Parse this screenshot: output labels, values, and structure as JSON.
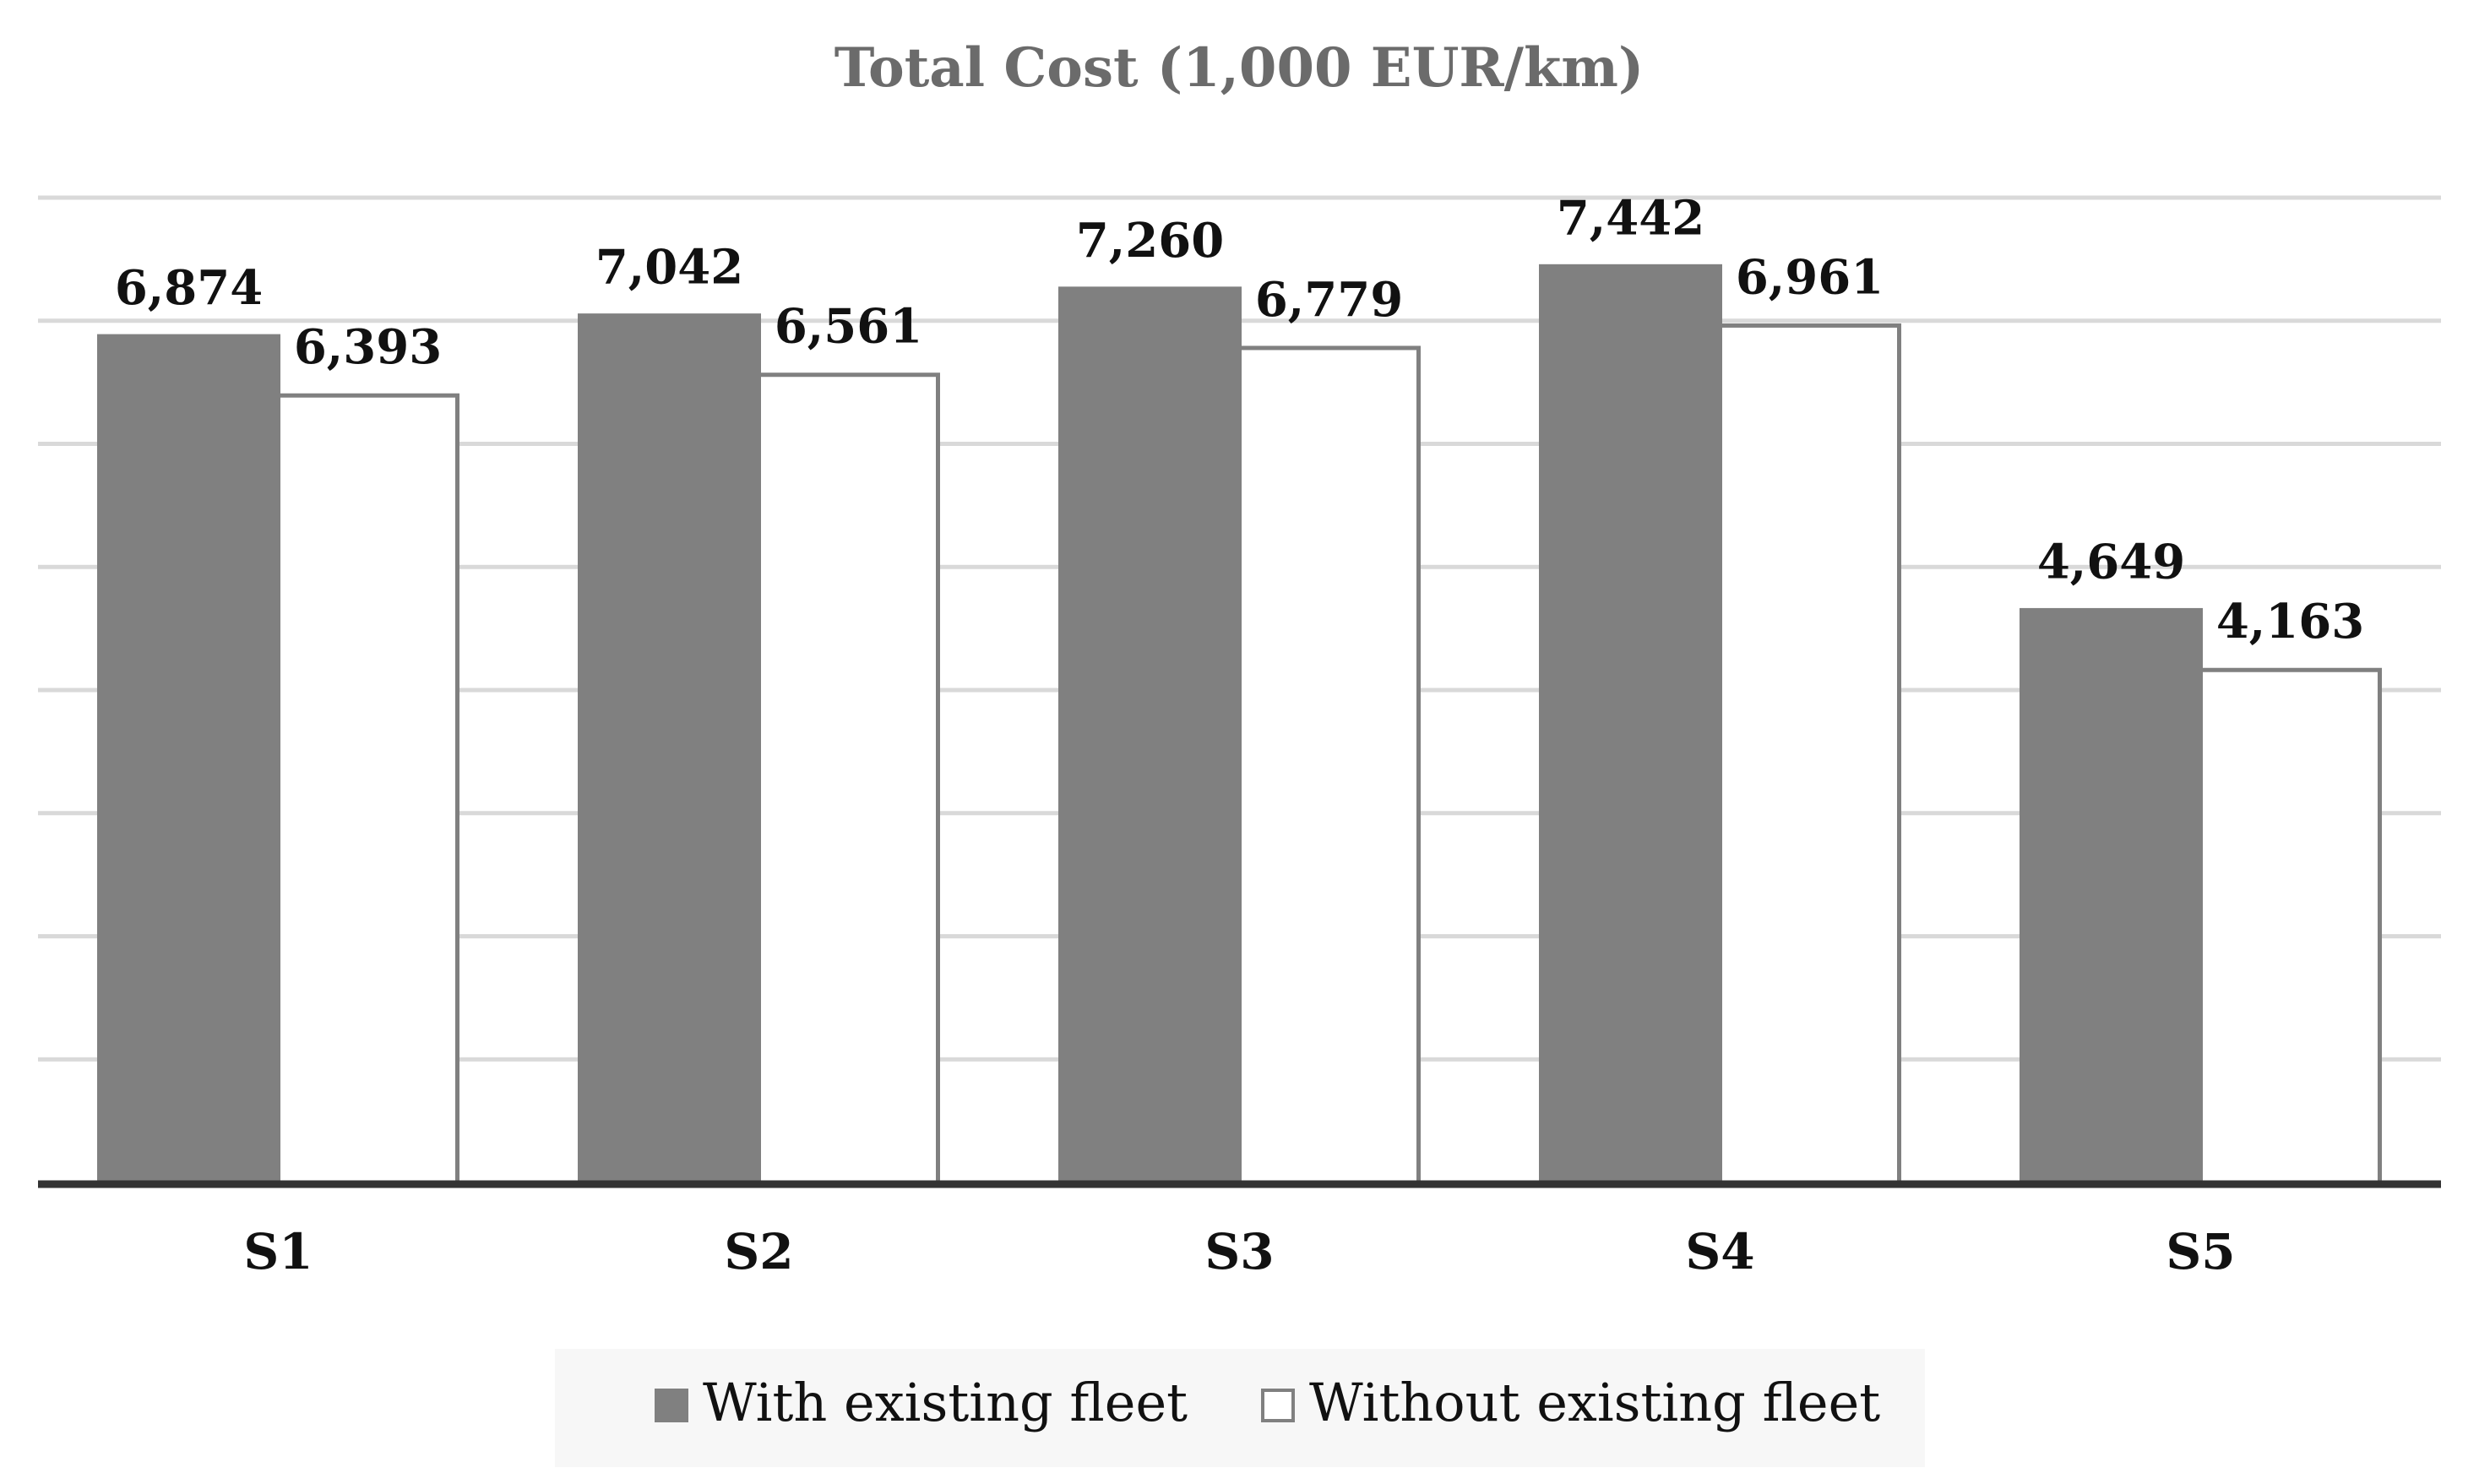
{
  "chart_data": {
    "type": "bar",
    "title": "Total Cost (1,000 EUR/km)",
    "xlabel": "",
    "ylabel": "",
    "categories": [
      "S1",
      "S2",
      "S3",
      "S4",
      "S5"
    ],
    "series": [
      {
        "name": "With existing fleet",
        "values": [
          6874,
          7042,
          7260,
          7442,
          4649
        ],
        "labels": [
          "6,874",
          "7,042",
          "7,260",
          "7,442",
          "4,649"
        ],
        "color": "#808080"
      },
      {
        "name": "Without existing fleet",
        "values": [
          6393,
          6561,
          6779,
          6961,
          4163
        ],
        "labels": [
          "6,393",
          "6,561",
          "6,779",
          "6,961",
          "4,163"
        ],
        "color": "#ffffff"
      }
    ],
    "ylim": [
      0,
      8000
    ],
    "grid": true,
    "legend": "bottom"
  }
}
